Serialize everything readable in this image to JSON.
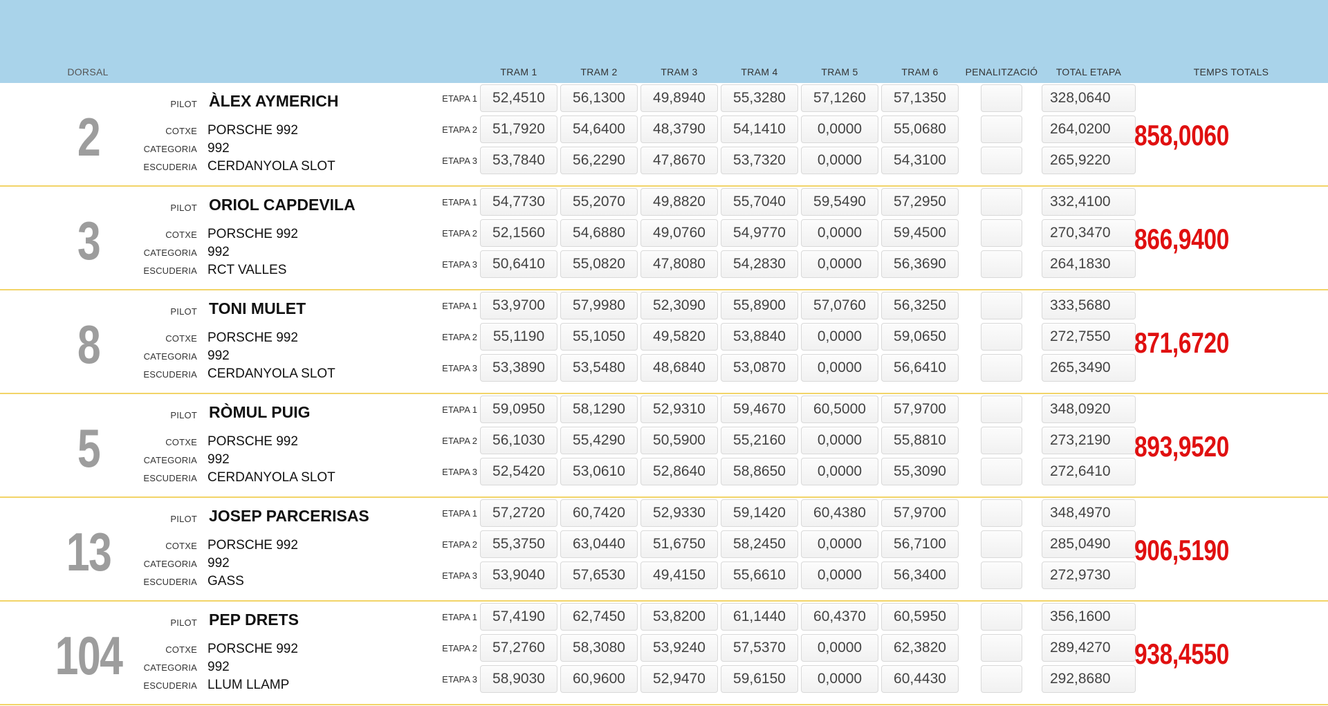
{
  "header": {
    "dorsal": "DORSAL",
    "tram1": "TRAM 1",
    "tram2": "TRAM 2",
    "tram3": "TRAM 3",
    "tram4": "TRAM 4",
    "tram5": "TRAM 5",
    "tram6": "TRAM 6",
    "penalitzacio": "PENALITZACIÓ",
    "total_etapa": "TOTAL ETAPA",
    "temps_totals": "TEMPS TOTALS"
  },
  "labels": {
    "pilot": "PILOT",
    "cotxe": "COTXE",
    "categoria": "CATEGORIA",
    "escuderia": "ESCUDERIA"
  },
  "colors": {
    "header_bg": "#a9d3ea",
    "total_red": "#e01010",
    "divider": "#f2d468",
    "dorsal_grey": "#9d9d9d"
  },
  "entries": [
    {
      "dorsal": "2",
      "pilot": "ÀLEX AYMERICH",
      "cotxe": "PORSCHE 992",
      "categoria": "992",
      "escuderia": "CERDANYOLA SLOT",
      "total": "858,0060",
      "etapes": [
        {
          "label": "ETAPA 1",
          "trams": [
            "52,4510",
            "56,1300",
            "49,8940",
            "55,3280",
            "57,1260",
            "57,1350"
          ],
          "pen": "",
          "total": "328,0640"
        },
        {
          "label": "ETAPA 2",
          "trams": [
            "51,7920",
            "54,6400",
            "48,3790",
            "54,1410",
            "0,0000",
            "55,0680"
          ],
          "pen": "",
          "total": "264,0200"
        },
        {
          "label": "ETAPA 3",
          "trams": [
            "53,7840",
            "56,2290",
            "47,8670",
            "53,7320",
            "0,0000",
            "54,3100"
          ],
          "pen": "",
          "total": "265,9220"
        }
      ]
    },
    {
      "dorsal": "3",
      "pilot": "ORIOL CAPDEVILA",
      "cotxe": "PORSCHE 992",
      "categoria": "992",
      "escuderia": "RCT VALLES",
      "total": "866,9400",
      "etapes": [
        {
          "label": "ETAPA 1",
          "trams": [
            "54,7730",
            "55,2070",
            "49,8820",
            "55,7040",
            "59,5490",
            "57,2950"
          ],
          "pen": "",
          "total": "332,4100"
        },
        {
          "label": "ETAPA 2",
          "trams": [
            "52,1560",
            "54,6880",
            "49,0760",
            "54,9770",
            "0,0000",
            "59,4500"
          ],
          "pen": "",
          "total": "270,3470"
        },
        {
          "label": "ETAPA 3",
          "trams": [
            "50,6410",
            "55,0820",
            "47,8080",
            "54,2830",
            "0,0000",
            "56,3690"
          ],
          "pen": "",
          "total": "264,1830"
        }
      ]
    },
    {
      "dorsal": "8",
      "pilot": "TONI MULET",
      "cotxe": "PORSCHE 992",
      "categoria": "992",
      "escuderia": "CERDANYOLA SLOT",
      "total": "871,6720",
      "etapes": [
        {
          "label": "ETAPA 1",
          "trams": [
            "53,9700",
            "57,9980",
            "52,3090",
            "55,8900",
            "57,0760",
            "56,3250"
          ],
          "pen": "",
          "total": "333,5680"
        },
        {
          "label": "ETAPA 2",
          "trams": [
            "55,1190",
            "55,1050",
            "49,5820",
            "53,8840",
            "0,0000",
            "59,0650"
          ],
          "pen": "",
          "total": "272,7550"
        },
        {
          "label": "ETAPA 3",
          "trams": [
            "53,3890",
            "53,5480",
            "48,6840",
            "53,0870",
            "0,0000",
            "56,6410"
          ],
          "pen": "",
          "total": "265,3490"
        }
      ]
    },
    {
      "dorsal": "5",
      "pilot": "RÒMUL PUIG",
      "cotxe": "PORSCHE 992",
      "categoria": "992",
      "escuderia": "CERDANYOLA SLOT",
      "total": "893,9520",
      "etapes": [
        {
          "label": "ETAPA 1",
          "trams": [
            "59,0950",
            "58,1290",
            "52,9310",
            "59,4670",
            "60,5000",
            "57,9700"
          ],
          "pen": "",
          "total": "348,0920"
        },
        {
          "label": "ETAPA 2",
          "trams": [
            "56,1030",
            "55,4290",
            "50,5900",
            "55,2160",
            "0,0000",
            "55,8810"
          ],
          "pen": "",
          "total": "273,2190"
        },
        {
          "label": "ETAPA 3",
          "trams": [
            "52,5420",
            "53,0610",
            "52,8640",
            "58,8650",
            "0,0000",
            "55,3090"
          ],
          "pen": "",
          "total": "272,6410"
        }
      ]
    },
    {
      "dorsal": "13",
      "pilot": "JOSEP PARCERISAS",
      "cotxe": "PORSCHE 992",
      "categoria": "992",
      "escuderia": "GASS",
      "total": "906,5190",
      "etapes": [
        {
          "label": "ETAPA 1",
          "trams": [
            "57,2720",
            "60,7420",
            "52,9330",
            "59,1420",
            "60,4380",
            "57,9700"
          ],
          "pen": "",
          "total": "348,4970"
        },
        {
          "label": "ETAPA 2",
          "trams": [
            "55,3750",
            "63,0440",
            "51,6750",
            "58,2450",
            "0,0000",
            "56,7100"
          ],
          "pen": "",
          "total": "285,0490"
        },
        {
          "label": "ETAPA 3",
          "trams": [
            "53,9040",
            "57,6530",
            "49,4150",
            "55,6610",
            "0,0000",
            "56,3400"
          ],
          "pen": "",
          "total": "272,9730"
        }
      ]
    },
    {
      "dorsal": "104",
      "pilot": "PEP DRETS",
      "cotxe": "PORSCHE 992",
      "categoria": "992",
      "escuderia": "LLUM LLAMP",
      "total": "938,4550",
      "etapes": [
        {
          "label": "ETAPA 1",
          "trams": [
            "57,4190",
            "62,7450",
            "53,8200",
            "61,1440",
            "60,4370",
            "60,5950"
          ],
          "pen": "",
          "total": "356,1600"
        },
        {
          "label": "ETAPA 2",
          "trams": [
            "57,2760",
            "58,3080",
            "53,9240",
            "57,5370",
            "0,0000",
            "62,3820"
          ],
          "pen": "",
          "total": "289,4270"
        },
        {
          "label": "ETAPA 3",
          "trams": [
            "58,9030",
            "60,9600",
            "52,9470",
            "59,6150",
            "0,0000",
            "60,4430"
          ],
          "pen": "",
          "total": "292,8680"
        }
      ]
    }
  ]
}
